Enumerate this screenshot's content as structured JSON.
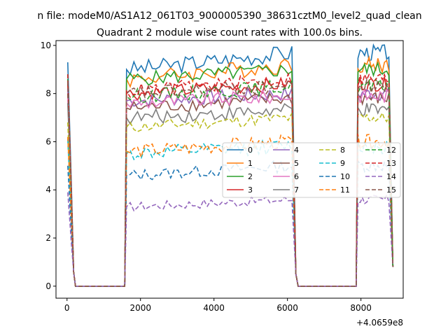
{
  "suptitle": "n file: modeM0/AS1A12_061T03_9000005390_38631cztM0_level2_quad_clean",
  "chart_data": {
    "type": "line",
    "title": "Quadrant 2 module wise count rates with 100.0s bins.",
    "xlabel": "",
    "ylabel": "",
    "offset_text": "+4.0659e8",
    "xlim": [
      -300,
      9150
    ],
    "ylim": [
      -0.5,
      10.2
    ],
    "xticks": [
      0,
      2000,
      4000,
      6000,
      8000
    ],
    "yticks": [
      0,
      2,
      4,
      6,
      8,
      10
    ],
    "grid": false,
    "legend": {
      "placement": "center-right",
      "ncol": 4
    },
    "segments": [
      {
        "x_start": 20,
        "x_end": 1570
      },
      {
        "x_start": 1620,
        "x_end": 7870
      },
      {
        "x_start": 7920,
        "x_end": 8870
      }
    ],
    "series": [
      {
        "name": "0",
        "color": "#1f77b4",
        "dashed": false,
        "peak": 9.3,
        "level_a": 9.0,
        "level_b": 9.7,
        "noise": 0.35
      },
      {
        "name": "1",
        "color": "#ff7f0e",
        "dashed": false,
        "peak": 8.0,
        "level_a": 8.6,
        "level_b": 9.2,
        "noise": 0.35
      },
      {
        "name": "2",
        "color": "#2ca02c",
        "dashed": false,
        "peak": 8.6,
        "level_a": 8.6,
        "level_b": 9.0,
        "noise": 0.3
      },
      {
        "name": "3",
        "color": "#d62728",
        "dashed": false,
        "peak": 8.4,
        "level_a": 8.0,
        "level_b": 8.4,
        "noise": 0.3
      },
      {
        "name": "4",
        "color": "#9467bd",
        "dashed": false,
        "peak": 8.2,
        "level_a": 7.7,
        "level_b": 8.0,
        "noise": 0.3
      },
      {
        "name": "5",
        "color": "#8c564b",
        "dashed": false,
        "peak": 8.0,
        "level_a": 7.4,
        "level_b": 7.8,
        "noise": 0.3
      },
      {
        "name": "6",
        "color": "#e377c2",
        "dashed": false,
        "peak": 7.8,
        "level_a": 7.6,
        "level_b": 7.9,
        "noise": 0.3
      },
      {
        "name": "7",
        "color": "#7f7f7f",
        "dashed": false,
        "peak": 7.6,
        "level_a": 7.0,
        "level_b": 7.3,
        "noise": 0.3
      },
      {
        "name": "8",
        "color": "#bcbd22",
        "dashed": true,
        "peak": 6.8,
        "level_a": 6.6,
        "level_b": 7.0,
        "noise": 0.25
      },
      {
        "name": "9",
        "color": "#17becf",
        "dashed": true,
        "peak": 6.1,
        "level_a": 5.5,
        "level_b": 5.8,
        "noise": 0.3
      },
      {
        "name": "10",
        "color": "#1f77b4",
        "dashed": true,
        "peak": 5.0,
        "level_a": 4.6,
        "level_b": 5.0,
        "noise": 0.25
      },
      {
        "name": "11",
        "color": "#ff7f0e",
        "dashed": true,
        "peak": 6.2,
        "level_a": 5.6,
        "level_b": 6.0,
        "noise": 0.3
      },
      {
        "name": "12",
        "color": "#2ca02c",
        "dashed": true,
        "peak": 8.8,
        "level_a": 7.9,
        "level_b": 8.3,
        "noise": 0.3
      },
      {
        "name": "13",
        "color": "#d62728",
        "dashed": true,
        "peak": 8.8,
        "level_a": 8.1,
        "level_b": 8.6,
        "noise": 0.3
      },
      {
        "name": "14",
        "color": "#9467bd",
        "dashed": true,
        "peak": 3.9,
        "level_a": 3.3,
        "level_b": 3.6,
        "noise": 0.2
      },
      {
        "name": "15",
        "color": "#8c564b",
        "dashed": true,
        "peak": 8.5,
        "level_a": 8.0,
        "level_b": 8.3,
        "noise": 0.3
      }
    ]
  }
}
